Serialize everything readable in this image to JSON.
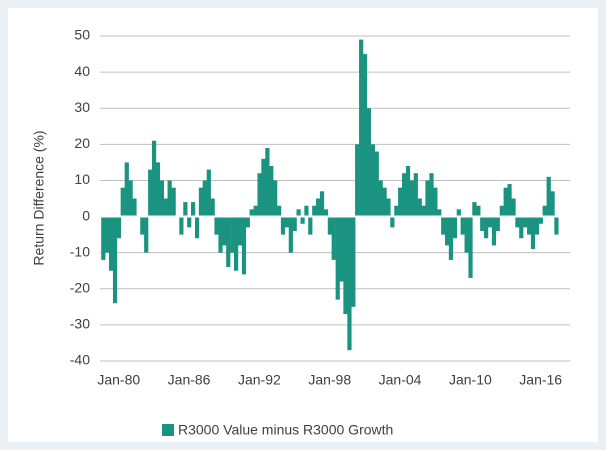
{
  "chart_data": {
    "type": "bar",
    "ylabel": "Return Difference (%)",
    "x": [
      1978.67,
      1979,
      1979.33,
      1979.67,
      1980,
      1980.33,
      1980.67,
      1981,
      1981.33,
      1981.67,
      1982,
      1982.33,
      1982.67,
      1983,
      1983.33,
      1983.67,
      1984,
      1984.33,
      1984.67,
      1985,
      1985.33,
      1985.67,
      1986,
      1986.33,
      1986.67,
      1987,
      1987.33,
      1987.67,
      1988,
      1988.33,
      1988.67,
      1989,
      1989.33,
      1989.67,
      1990,
      1990.33,
      1990.67,
      1991,
      1991.33,
      1991.67,
      1992,
      1992.33,
      1992.67,
      1993,
      1993.33,
      1993.67,
      1994,
      1994.33,
      1994.67,
      1995,
      1995.33,
      1995.67,
      1996,
      1996.33,
      1996.67,
      1997,
      1997.33,
      1997.67,
      1998,
      1998.33,
      1998.67,
      1999,
      1999.33,
      1999.67,
      2000,
      2000.33,
      2000.67,
      2001,
      2001.33,
      2001.67,
      2002,
      2002.33,
      2002.67,
      2003,
      2003.33,
      2003.67,
      2004,
      2004.33,
      2004.67,
      2005,
      2005.33,
      2005.67,
      2006,
      2006.33,
      2006.67,
      2007,
      2007.33,
      2007.67,
      2008,
      2008.33,
      2008.67,
      2009,
      2009.33,
      2009.67,
      2010,
      2010.33,
      2010.67,
      2011,
      2011.33,
      2011.67,
      2012,
      2012.33,
      2012.67,
      2013,
      2013.33,
      2013.67,
      2014,
      2014.33,
      2014.67,
      2015,
      2015.33,
      2015.67,
      2016,
      2016.33,
      2016.67,
      2017,
      2017.33
    ],
    "series": [
      {
        "name": "R3000 Value minus R3000 Growth",
        "color": "#1a9480",
        "values": [
          -12,
          -10,
          -15,
          -24,
          -6,
          8,
          15,
          10,
          5,
          0,
          -5,
          -10,
          13,
          21,
          15,
          10,
          5,
          10,
          8,
          0,
          -5,
          4,
          -3,
          4,
          -6,
          8,
          10,
          13,
          5,
          -5,
          -10,
          -8,
          -14,
          -10,
          -15,
          -8,
          -16,
          -3,
          2,
          3,
          12,
          16,
          19,
          14,
          10,
          3,
          -5,
          -3,
          -10,
          -4,
          2,
          -2,
          3,
          -5,
          3,
          5,
          7,
          2,
          -5,
          -12,
          -23,
          -18,
          -27,
          -37,
          -25,
          20,
          49,
          45,
          30,
          20,
          18,
          10,
          8,
          5,
          -3,
          3,
          8,
          12,
          14,
          10,
          12,
          5,
          3,
          10,
          12,
          8,
          2,
          -5,
          -8,
          -12,
          -6,
          2,
          -5,
          -10,
          -17,
          4,
          3,
          -4,
          -6,
          -3,
          -8,
          -4,
          3,
          8,
          9,
          5,
          -3,
          -6,
          -3,
          -5,
          -9,
          -5,
          -2,
          3,
          11,
          7,
          -5
        ]
      }
    ],
    "xlim": [
      1978.4,
      2018.5
    ],
    "xticks": [
      {
        "value": 1980,
        "label": "Jan-80"
      },
      {
        "value": 1986,
        "label": "Jan-86"
      },
      {
        "value": 1992,
        "label": "Jan-92"
      },
      {
        "value": 1998,
        "label": "Jan-98"
      },
      {
        "value": 2004,
        "label": "Jan-04"
      },
      {
        "value": 2010,
        "label": "Jan-10"
      },
      {
        "value": 2016,
        "label": "Jan-16"
      }
    ],
    "ylim": [
      -40,
      50
    ],
    "yticks": [
      -40,
      -30,
      -20,
      -10,
      0,
      10,
      20,
      30,
      40,
      50
    ],
    "grid": true
  }
}
